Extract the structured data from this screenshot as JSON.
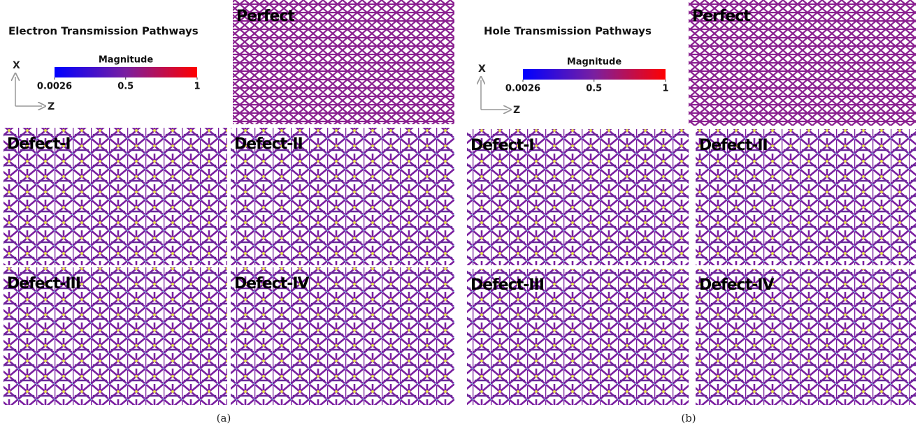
{
  "panels": [
    {
      "title": "Electron Transmission Pathways",
      "colorbar": {
        "label": "Magnitude",
        "range": [
          0.0026,
          1
        ],
        "ticks": [
          0.0026,
          0.5,
          1
        ],
        "colors": [
          "#0000ff",
          "#7a1fa0",
          "#ff0000"
        ]
      },
      "axes": [
        "X",
        "Z"
      ],
      "structures": [
        "Perfect",
        "Defect-I",
        "Defect-II",
        "Defect-III",
        "Defect-IV"
      ],
      "caption": "(a)"
    },
    {
      "title": "Hole Transmission Pathways",
      "colorbar": {
        "label": "Magnitude",
        "range": [
          0.0026,
          1
        ],
        "ticks": [
          0.0026,
          0.5,
          1
        ],
        "colors": [
          "#0000ff",
          "#7a1fa0",
          "#ff0000"
        ]
      },
      "axes": [
        "X",
        "Z"
      ],
      "structures": [
        "Perfect",
        "Defect-I",
        "Defect-II",
        "Defect-III",
        "Defect-IV"
      ],
      "caption": "(b)"
    }
  ]
}
